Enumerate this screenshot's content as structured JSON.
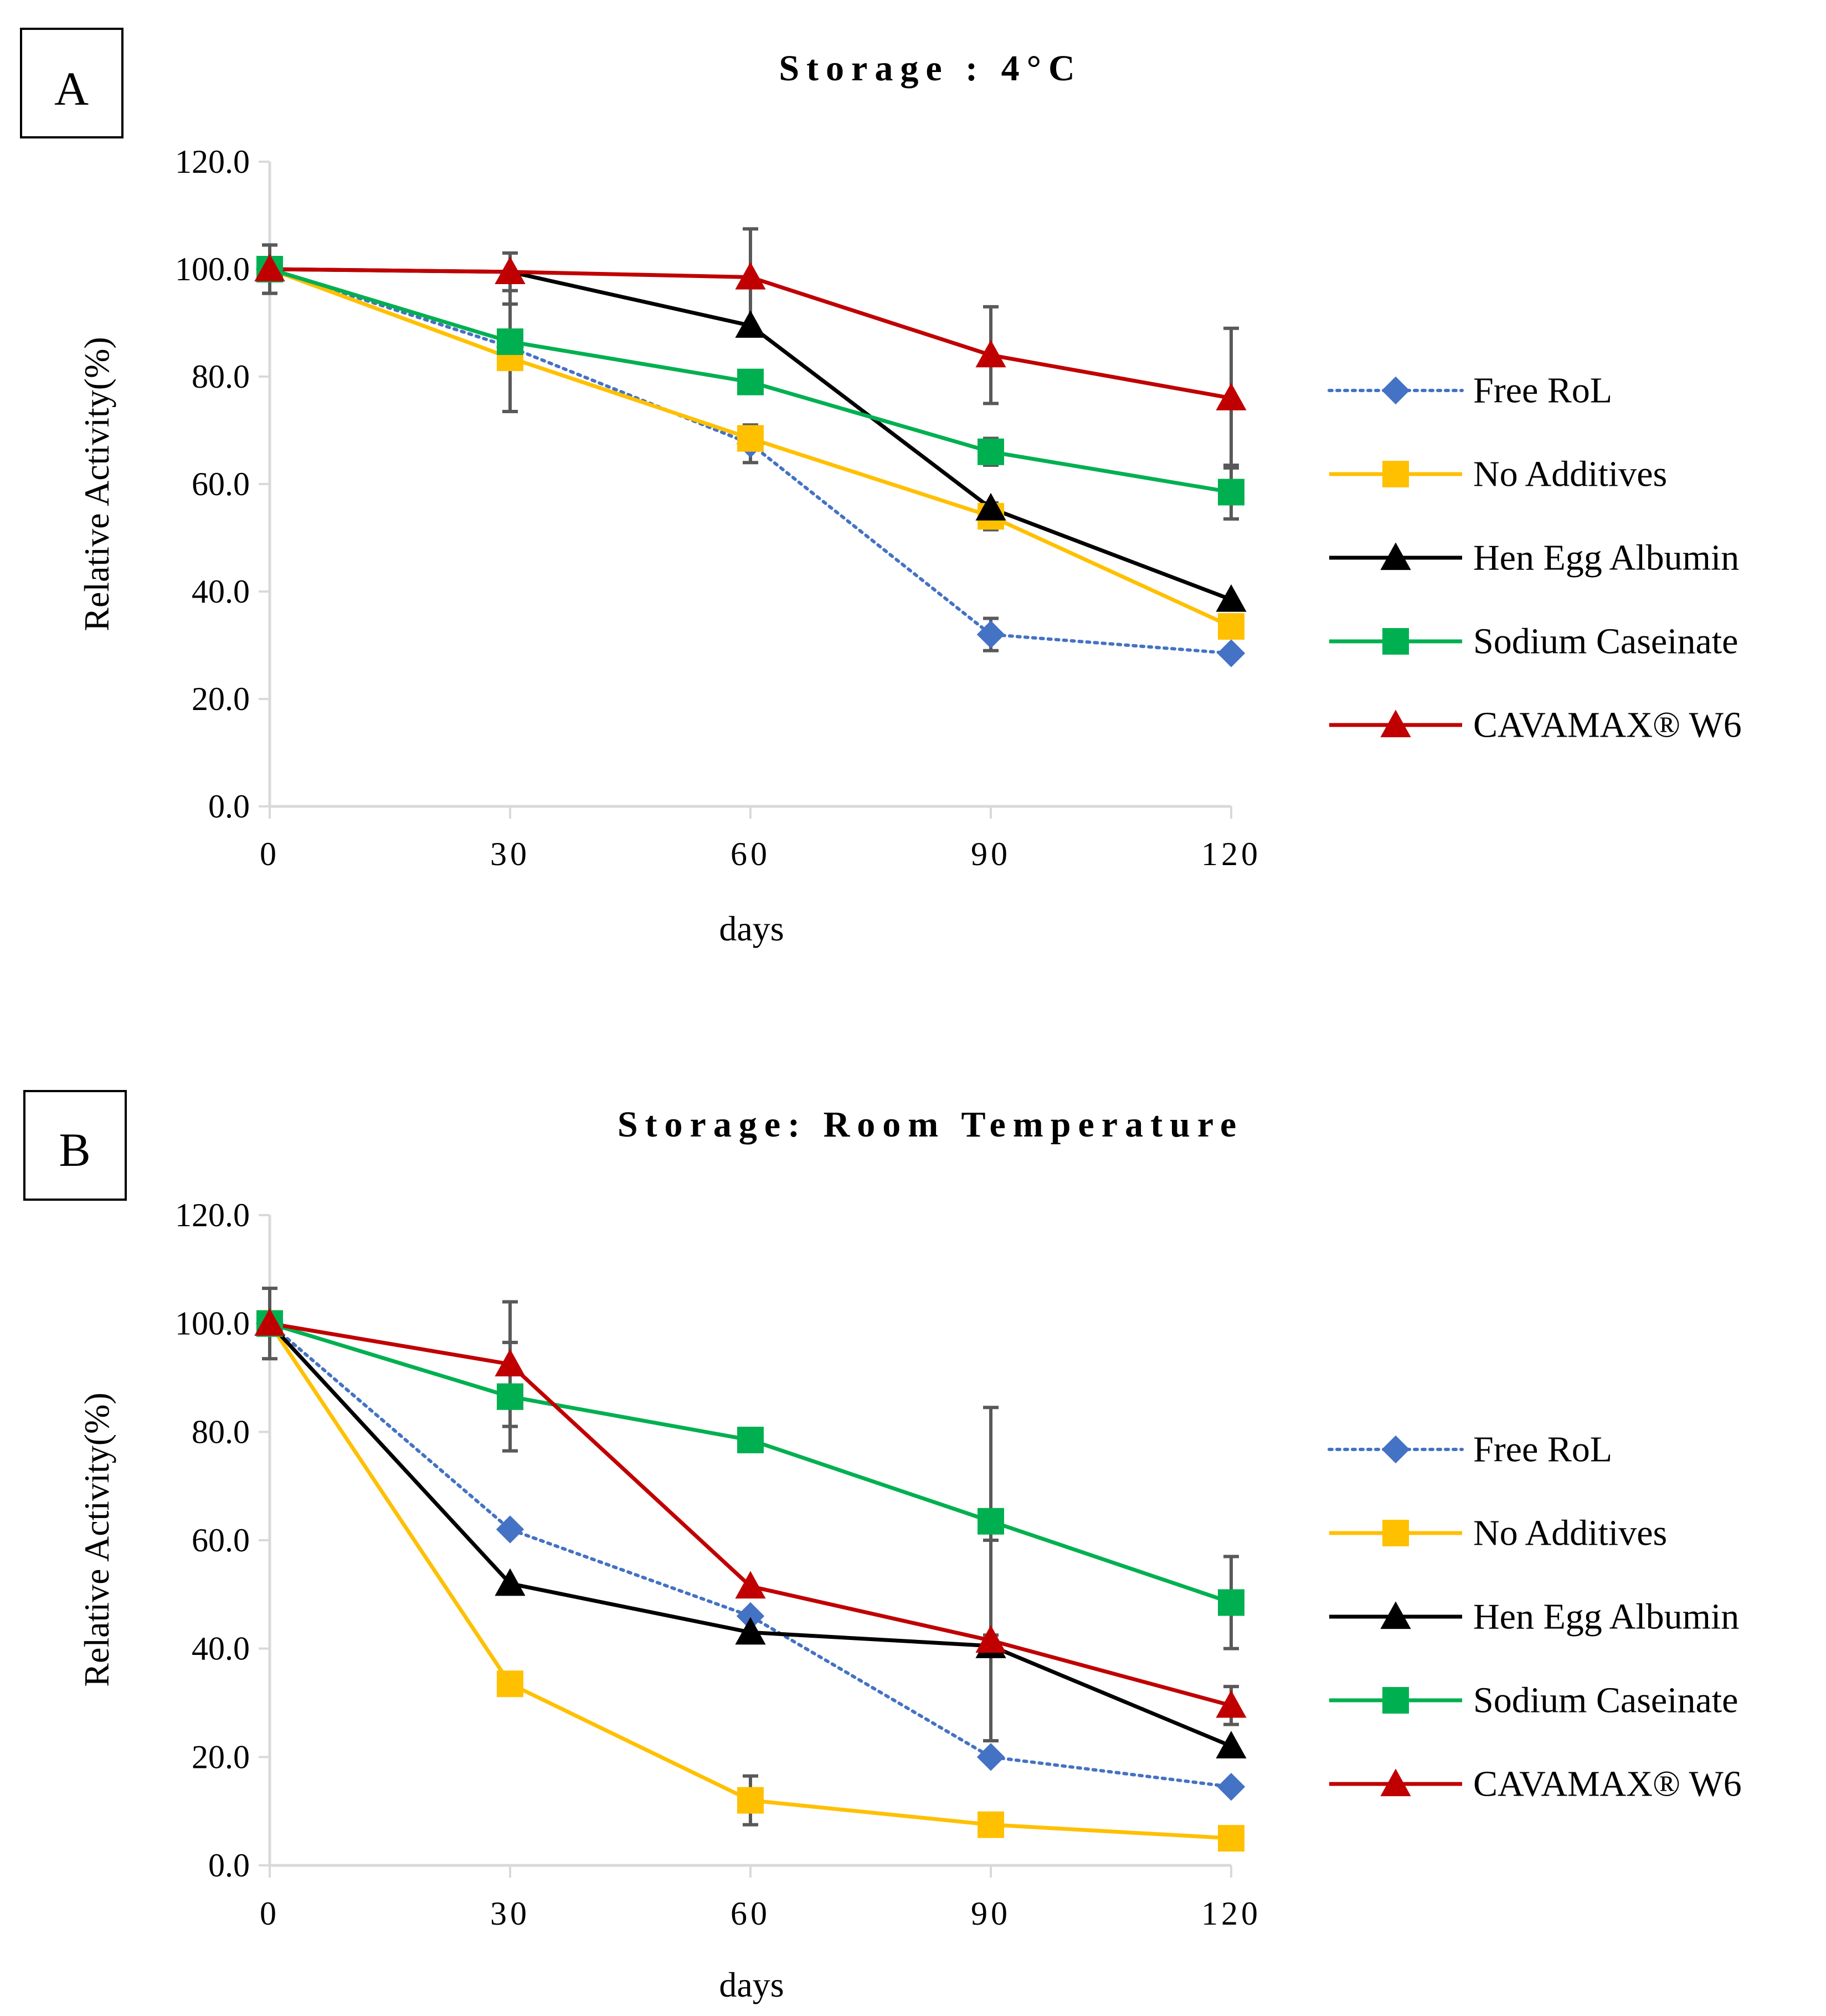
{
  "figure": {
    "panels": [
      "A",
      "B"
    ]
  },
  "chart_data": [
    {
      "type": "line",
      "panel": "A",
      "title": "Storage : 4°C",
      "xlabel": "days",
      "ylabel": "Relative Activity(%)",
      "x": [
        0,
        30,
        60,
        90,
        120
      ],
      "xticks": [
        "0",
        "30",
        "60",
        "90",
        "120"
      ],
      "ylim": [
        0,
        120
      ],
      "yticks": [
        "0.0",
        "20.0",
        "40.0",
        "60.0",
        "80.0",
        "100.0",
        "120.0"
      ],
      "legend_position": "right",
      "series": [
        {
          "name": "Free RoL",
          "color": "#4472c4",
          "marker": "diamond",
          "dash": "dotted",
          "values": [
            100,
            85.5,
            67.5,
            32,
            28.5
          ],
          "errors": [
            4.5,
            0,
            3.5,
            3,
            0
          ]
        },
        {
          "name": "No Additives",
          "color": "#ffc000",
          "marker": "square",
          "dash": "solid",
          "values": [
            100,
            83.5,
            68.5,
            54,
            33.5
          ],
          "errors": [
            0,
            10,
            0,
            2.5,
            0
          ]
        },
        {
          "name": "Hen Egg Albumin",
          "color": "#000000",
          "marker": "triangle",
          "dash": "solid",
          "values": [
            100,
            99.5,
            89.5,
            55.5,
            38.5
          ],
          "errors": [
            0,
            3.5,
            0,
            0,
            0
          ]
        },
        {
          "name": "Sodium Caseinate",
          "color": "#00b050",
          "marker": "square",
          "dash": "solid",
          "values": [
            100,
            86.5,
            79,
            66,
            58.5
          ],
          "errors": [
            4.5,
            13,
            0,
            2.5,
            5
          ]
        },
        {
          "name": "CAVAMAX® W6",
          "color": "#c00000",
          "marker": "triangle",
          "dash": "solid",
          "values": [
            100,
            99.5,
            98.5,
            84,
            76
          ],
          "errors": [
            0,
            0,
            9,
            9,
            13
          ]
        }
      ]
    },
    {
      "type": "line",
      "panel": "B",
      "title": "Storage: Room Temperature",
      "xlabel": "days",
      "ylabel": "Relative Activity(%)",
      "x": [
        0,
        30,
        60,
        90,
        120
      ],
      "xticks": [
        "0",
        "30",
        "60",
        "90",
        "120"
      ],
      "ylim": [
        0,
        120
      ],
      "yticks": [
        "0.0",
        "20.0",
        "40.0",
        "60.0",
        "80.0",
        "100.0",
        "120.0"
      ],
      "legend_position": "right",
      "series": [
        {
          "name": "Free RoL",
          "color": "#4472c4",
          "marker": "diamond",
          "dash": "dotted",
          "values": [
            100,
            62,
            46,
            20,
            14.5
          ],
          "errors": [
            0,
            0,
            0,
            0,
            0
          ]
        },
        {
          "name": "No Additives",
          "color": "#ffc000",
          "marker": "square",
          "dash": "solid",
          "values": [
            100,
            33.5,
            12,
            7.5,
            5
          ],
          "errors": [
            0,
            0,
            4.5,
            0,
            0
          ]
        },
        {
          "name": "Hen Egg Albumin",
          "color": "#000000",
          "marker": "triangle",
          "dash": "solid",
          "values": [
            100,
            52,
            43,
            40.5,
            22
          ],
          "errors": [
            0,
            0,
            0,
            0,
            0
          ]
        },
        {
          "name": "Sodium Caseinate",
          "color": "#00b050",
          "marker": "square",
          "dash": "solid",
          "values": [
            100,
            86.5,
            78.5,
            63.5,
            48.5
          ],
          "errors": [
            6.5,
            10,
            0,
            21,
            8.5
          ]
        },
        {
          "name": "CAVAMAX® W6",
          "color": "#c00000",
          "marker": "triangle",
          "dash": "solid",
          "values": [
            100,
            92.5,
            51.5,
            41.5,
            29.5
          ],
          "errors": [
            0,
            11.5,
            0,
            18.5,
            3.5
          ]
        }
      ]
    }
  ]
}
